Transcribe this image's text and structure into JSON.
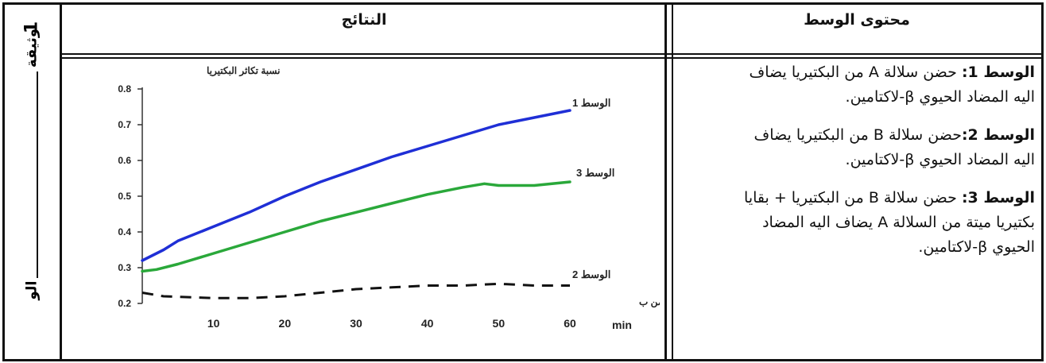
{
  "headers": {
    "results": "النتائج",
    "medium_content": "محتوى الوسط"
  },
  "side_label": {
    "number": "1",
    "top_word": "وثيقة",
    "bottom_word": "الو"
  },
  "media": [
    {
      "title": "الوسط 1:",
      "lines": [
        "حضن سلالة A من البكتيريا يضاف",
        "اليه المضاد الحيوي β-لاكتامين."
      ]
    },
    {
      "title": "الوسط 2:",
      "lines": [
        "حضن سلالة B من البكتيريا يضاف",
        "اليه المضاد الحيوي β-لاكتامين."
      ]
    },
    {
      "title": "الوسط 3:",
      "lines": [
        "حضن سلالة B من البكتيريا + بقايا",
        "بكتيريا ميتة من السلالة A يضاف اليه المضاد",
        "الحيوي β-لاكتامين."
      ]
    }
  ],
  "chart_data": {
    "type": "line",
    "ylabel": "نسبة تكاثر البكتيريا",
    "xlabel": "الزمن ب",
    "xunit": "min",
    "xlim": [
      0,
      60
    ],
    "ylim": [
      0.2,
      0.8
    ],
    "xticks": [
      10,
      20,
      30,
      40,
      50,
      60
    ],
    "yticks": [
      0.2,
      0.3,
      0.4,
      0.5,
      0.6,
      0.7,
      0.8
    ],
    "series": [
      {
        "name": "الوسط 1",
        "color": "#1f2fd6",
        "style": "solid",
        "x": [
          0,
          3,
          5,
          10,
          15,
          20,
          25,
          30,
          35,
          40,
          45,
          50,
          55,
          60
        ],
        "y": [
          0.32,
          0.35,
          0.375,
          0.415,
          0.455,
          0.5,
          0.54,
          0.575,
          0.61,
          0.64,
          0.67,
          0.7,
          0.72,
          0.74
        ]
      },
      {
        "name": "الوسط 3",
        "color": "#2aa83a",
        "style": "solid",
        "x": [
          0,
          2,
          5,
          10,
          15,
          20,
          25,
          30,
          35,
          40,
          45,
          48,
          50,
          55,
          60
        ],
        "y": [
          0.29,
          0.295,
          0.31,
          0.34,
          0.37,
          0.4,
          0.43,
          0.455,
          0.48,
          0.505,
          0.525,
          0.535,
          0.53,
          0.53,
          0.54
        ]
      },
      {
        "name": "الوسط 2",
        "color": "#111111",
        "style": "dashed",
        "x": [
          0,
          3,
          10,
          15,
          20,
          25,
          30,
          35,
          40,
          45,
          50,
          55,
          60
        ],
        "y": [
          0.23,
          0.22,
          0.215,
          0.215,
          0.22,
          0.23,
          0.24,
          0.245,
          0.25,
          0.25,
          0.255,
          0.25,
          0.25
        ]
      }
    ]
  }
}
